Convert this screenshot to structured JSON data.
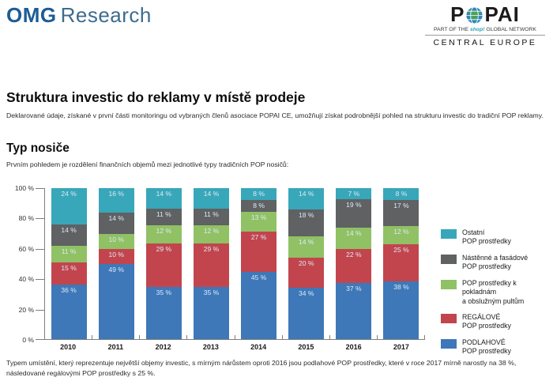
{
  "header": {
    "omg": {
      "bold": "OMG",
      "light": "Research"
    },
    "popai": {
      "name_pre": "P",
      "name_post": "PAI",
      "tagline_pre": "PART OF THE",
      "tagline_brand": "shop!",
      "tagline_post": "GLOBAL NETWORK",
      "region": "CENTRAL EUROPE"
    }
  },
  "page": {
    "title": "Struktura investic do reklamy v místě prodeje",
    "subtitle": "Deklarované údaje, získané v první části monitoringu od vybraných členů asociace POPAI CE, umožňují získat podrobnější pohled na strukturu investic do tradiční POP reklamy.",
    "section_title": "Typ nosiče",
    "section_intro": "Prvním pohledem je rozdělení finančních objemů mezi jednotlivé typy tradičních POP nosičů:",
    "footer_note": "Typem umístění, který reprezentuje největší objemy investic, s mírným nárůstem oproti 2016 jsou podlahové POP prostředky, které v roce 2017 mírně narostly na 38 %, následované regálovými POP prostředky s 25 %."
  },
  "chart_data": {
    "type": "bar",
    "subtype": "stacked-100-percent",
    "title": "Typ nosiče",
    "categories": [
      "2010",
      "2011",
      "2012",
      "2013",
      "2014",
      "2015",
      "2016",
      "2017"
    ],
    "series": [
      {
        "name": "PODLAHOVÉ POP prostředky",
        "color": "#3e78b8",
        "values": [
          36,
          49,
          35,
          35,
          45,
          34,
          37,
          38
        ]
      },
      {
        "name": "REGÁLOVÉ POP prostředky",
        "color": "#c2454e",
        "values": [
          15,
          10,
          29,
          29,
          27,
          20,
          22,
          25
        ]
      },
      {
        "name": "POP prostředky k pokladnám a obslužným pultům",
        "color": "#90c164",
        "values": [
          11,
          10,
          12,
          12,
          13,
          14,
          14,
          12
        ]
      },
      {
        "name": "Nástěnné a fasádové POP prostředky",
        "color": "#5f6163",
        "values": [
          14,
          14,
          11,
          11,
          8,
          18,
          19,
          17
        ]
      },
      {
        "name": "Ostatní POP prostředky",
        "color": "#38a7b9",
        "values": [
          24,
          16,
          14,
          14,
          8,
          14,
          7,
          8
        ]
      }
    ],
    "series_order": "bottom-to-top",
    "label_suffix": " %",
    "y_ticks": [
      "0 %",
      "20 %",
      "40 %",
      "60 %",
      "80 %",
      "100 %"
    ],
    "y_tick_values": [
      0,
      20,
      40,
      60,
      80,
      100
    ],
    "ylim": [
      0,
      100
    ],
    "grid": false,
    "legend_position": "right",
    "legend": [
      {
        "lines": [
          "Ostatní",
          "POP prostředky"
        ],
        "color": "#38a7b9"
      },
      {
        "lines": [
          "Nástěnné a fasádové",
          "POP prostředky"
        ],
        "color": "#5f6163"
      },
      {
        "lines": [
          "POP prostředky k pokladnám",
          "a obslužným pultům"
        ],
        "color": "#90c164"
      },
      {
        "lines": [
          "REGÁLOVÉ",
          "POP prostředky"
        ],
        "color": "#c2454e"
      },
      {
        "lines": [
          "PODLAHOVÉ",
          "POP prostředky"
        ],
        "color": "#3e78b8"
      }
    ]
  }
}
